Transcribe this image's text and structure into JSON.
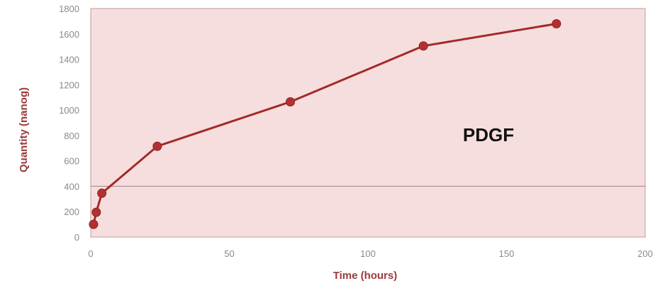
{
  "chart_data": {
    "type": "line",
    "xlabel": "Time (hours)",
    "ylabel": "Quantity (nanog)",
    "annotation": "PDGF",
    "xlim": [
      0,
      200
    ],
    "ylim": [
      0,
      1800
    ],
    "x_ticks": [
      0,
      50,
      100,
      150,
      200
    ],
    "x_tick_labels": [
      "0",
      "50",
      "100",
      "150",
      "200"
    ],
    "y_ticks": [
      0,
      200,
      400,
      600,
      800,
      1000,
      1200,
      1400,
      1600,
      1800
    ],
    "y_tick_labels": [
      "0",
      "200",
      "400",
      "600",
      "800",
      "1000",
      "1200",
      "1400",
      "1600",
      "1800"
    ],
    "series": [
      {
        "x": [
          1,
          2,
          4,
          24,
          72,
          120,
          168
        ],
        "y": [
          100,
          195,
          345,
          715,
          1065,
          1505,
          1680
        ]
      }
    ],
    "colors": {
      "plot_background": "#f7dede",
      "plot_border": "#c9a9a9",
      "reference_line": "#a98a8a",
      "series_line": "#a32a2a",
      "marker": "#b43030"
    },
    "reference_line_y": 400,
    "grid": false
  }
}
